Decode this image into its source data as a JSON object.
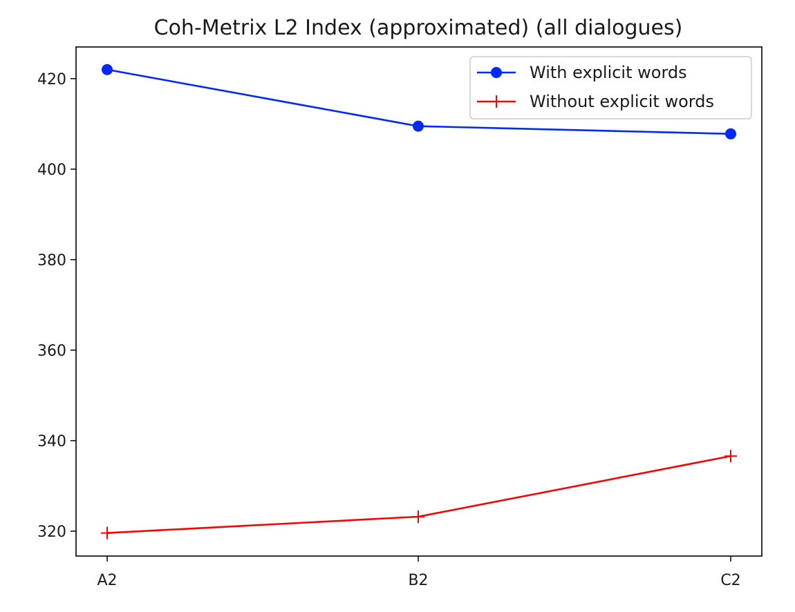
{
  "chart_data": {
    "type": "line",
    "title": "Coh-Metrix L2 Index (approximated) (all dialogues)",
    "xlabel": "",
    "ylabel": "",
    "categories": [
      "A2",
      "B2",
      "C2"
    ],
    "ylim": [
      314.5,
      427.0
    ],
    "yticks": [
      320,
      340,
      360,
      380,
      400,
      420
    ],
    "grid": false,
    "legend_position": "top-right",
    "series": [
      {
        "name": "With explicit words",
        "values": [
          422.0,
          409.5,
          407.8
        ],
        "color": "#0028ff",
        "marker": "circle"
      },
      {
        "name": "Without explicit words",
        "values": [
          319.6,
          323.2,
          336.6
        ],
        "color": "#ff0000",
        "marker": "plus"
      }
    ]
  }
}
